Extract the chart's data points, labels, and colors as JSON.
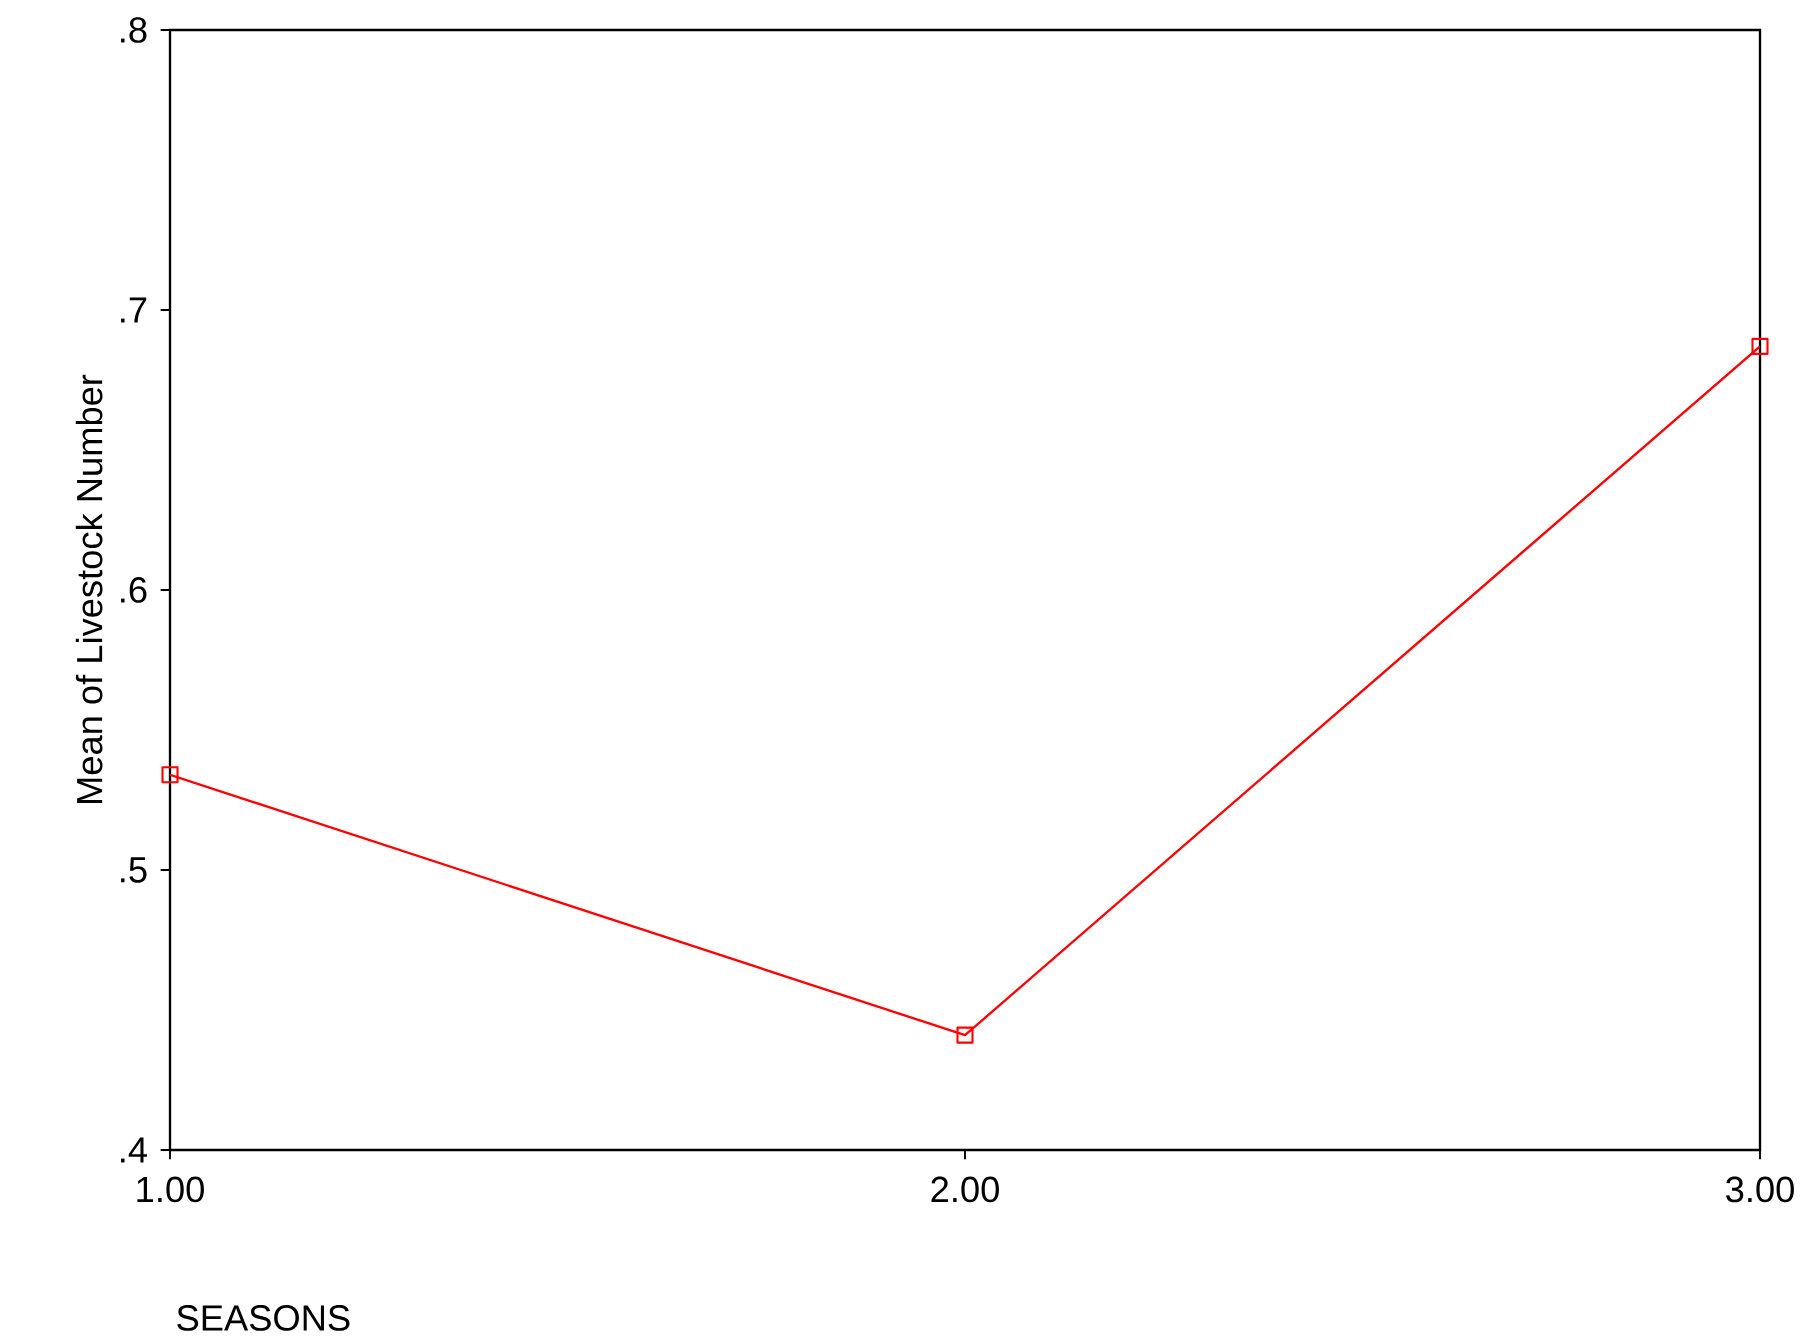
{
  "chart_data": {
    "type": "line",
    "xlabel": "SEASONS",
    "ylabel": "Mean of Livestock Number",
    "categories": [
      "1.00",
      "2.00",
      "3.00"
    ],
    "series": [
      {
        "color": "#ff0000",
        "values": [
          0.534,
          0.441,
          0.687
        ]
      }
    ],
    "ylim": [
      0.4,
      0.8
    ],
    "yticks": [
      {
        "value": 0.4,
        "label": ".4"
      },
      {
        "value": 0.5,
        "label": ".5"
      },
      {
        "value": 0.6,
        "label": ".6"
      },
      {
        "value": 0.7,
        "label": ".7"
      },
      {
        "value": 0.8,
        "label": ".8"
      }
    ],
    "marker": "square",
    "grid": false
  }
}
